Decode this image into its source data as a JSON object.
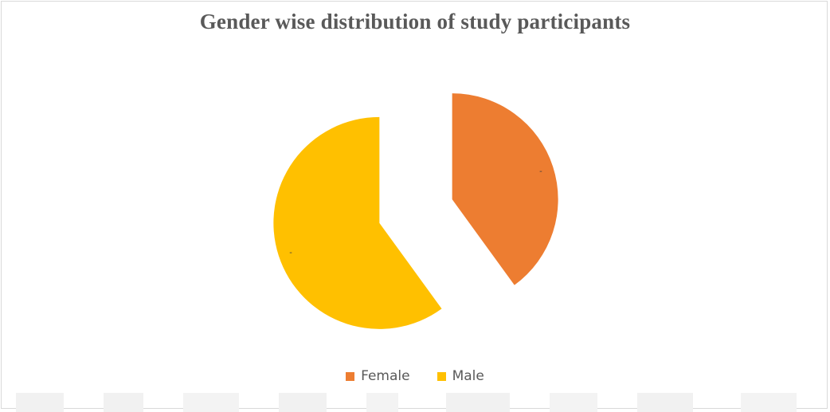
{
  "chart_data": {
    "type": "pie",
    "title": "Gender wise distribution of study participants",
    "categories": [
      "Female",
      "Male"
    ],
    "values": [
      40,
      60
    ],
    "colors": [
      "#ED7D31",
      "#FFC000"
    ],
    "data_labels": [
      "-",
      "-"
    ],
    "exploded": true,
    "legend": "bottom"
  }
}
